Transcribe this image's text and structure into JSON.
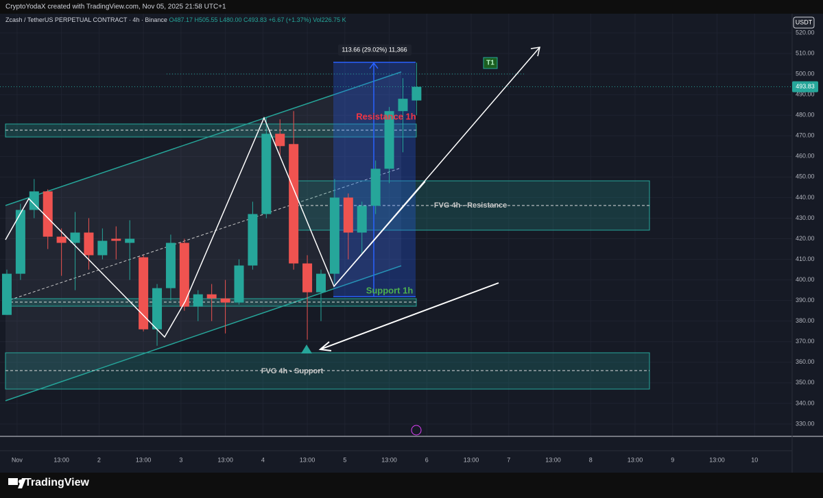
{
  "chart_data": {
    "type": "candlestick",
    "credit": "CryptoYodaX created with TradingView.com, Nov 05, 2025 21:58 UTC+1",
    "title": "Zcash / TetherUS PERPETUAL CONTRACT · 4h · Binance",
    "ohlc_header": "O487.17 H505.55 L480.00 C493.83 +6.67 (+1.37%) Vol226.75 K",
    "currency": "USDT",
    "brand": "TradingView",
    "annotations": {
      "measure": "113.66 (29.02%) 11,366",
      "target": "T1",
      "resistance_1h": "Resistance 1h",
      "support_1h": "Support 1h",
      "fvg_resistance": "FVG 4h - Resistance",
      "fvg_support": "FVG 4h - Support"
    },
    "up_color": "#26a69a",
    "down_color": "#ef5350",
    "x": [
      -3,
      1,
      5,
      9,
      13,
      17,
      21,
      25,
      29,
      33,
      37,
      41,
      45,
      49,
      53,
      57,
      61,
      65,
      69,
      73,
      77,
      81,
      85,
      89,
      93,
      97,
      101,
      105,
      109,
      113,
      117
    ],
    "open": [
      383,
      403,
      434,
      443,
      421,
      418,
      423,
      412,
      420,
      418,
      411,
      376,
      396,
      418,
      387,
      393,
      391,
      389,
      407,
      432,
      471,
      466,
      408,
      394,
      403,
      440,
      423,
      436,
      454,
      482,
      487.17
    ],
    "high": [
      405,
      437,
      449,
      444,
      425,
      433,
      430,
      425,
      426,
      429,
      412,
      398,
      422,
      420,
      395,
      398,
      400,
      410,
      438,
      479,
      478,
      482,
      412,
      405,
      449,
      442,
      438,
      458,
      484,
      498,
      505.55
    ],
    "low": [
      383,
      400,
      430,
      415,
      402,
      395,
      405,
      410,
      410,
      400,
      375,
      368,
      390,
      385,
      380,
      380,
      374,
      388,
      405,
      430,
      460,
      405,
      371,
      380,
      398,
      410,
      413,
      432,
      447,
      462,
      480
    ],
    "close": [
      403,
      434,
      443,
      421,
      418,
      423,
      412,
      419,
      419,
      420,
      376,
      396,
      418,
      387,
      393,
      391,
      389,
      407,
      432,
      471,
      465,
      408,
      394,
      403,
      440,
      423,
      436,
      454,
      482,
      488,
      493.83
    ],
    "xlim": [
      -4,
      227
    ],
    "xticks": [
      {
        "value": 0,
        "label": "Nov"
      },
      {
        "value": 13,
        "label": "13:00"
      },
      {
        "value": 24,
        "label": "2"
      },
      {
        "value": 37,
        "label": "13:00"
      },
      {
        "value": 48,
        "label": "3"
      },
      {
        "value": 61,
        "label": "13:00"
      },
      {
        "value": 72,
        "label": "4"
      },
      {
        "value": 85,
        "label": "13:00"
      },
      {
        "value": 96,
        "label": "5"
      },
      {
        "value": 109,
        "label": "13:00"
      },
      {
        "value": 120,
        "label": "6"
      },
      {
        "value": 133,
        "label": "13:00"
      },
      {
        "value": 144,
        "label": "7"
      },
      {
        "value": 157,
        "label": "13:00"
      },
      {
        "value": 168,
        "label": "8"
      },
      {
        "value": 181,
        "label": "13:00"
      },
      {
        "value": 192,
        "label": "9"
      },
      {
        "value": 205,
        "label": "13:00"
      },
      {
        "value": 216,
        "label": "10"
      }
    ],
    "ylim": [
      324,
      525
    ],
    "yticks": [
      {
        "value": 330,
        "label": "330.00"
      },
      {
        "value": 340,
        "label": "340.00"
      },
      {
        "value": 350,
        "label": "350.00"
      },
      {
        "value": 360,
        "label": "360.00"
      },
      {
        "value": 370,
        "label": "370.00"
      },
      {
        "value": 380,
        "label": "380.00"
      },
      {
        "value": 390,
        "label": "390.00"
      },
      {
        "value": 400,
        "label": "400.00"
      },
      {
        "value": 410,
        "label": "410.00"
      },
      {
        "value": 420,
        "label": "420.00"
      },
      {
        "value": 430,
        "label": "430.00"
      },
      {
        "value": 440,
        "label": "440.00"
      },
      {
        "value": 450,
        "label": "450.00"
      },
      {
        "value": 460,
        "label": "460.00"
      },
      {
        "value": 470,
        "label": "470.00"
      },
      {
        "value": 480,
        "label": "480.00"
      },
      {
        "value": 490,
        "label": "490.00"
      },
      {
        "value": 500,
        "label": "500.00"
      },
      {
        "value": 510,
        "label": "510.00"
      },
      {
        "value": 520,
        "label": "520.00"
      }
    ],
    "grid": true
  }
}
